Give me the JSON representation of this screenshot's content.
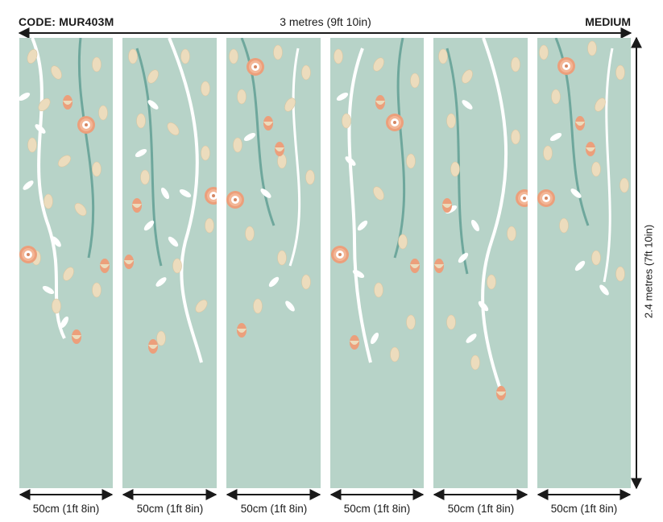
{
  "product": {
    "code_label": "CODE: MUR403M",
    "size_label": "MEDIUM"
  },
  "dimensions": {
    "total_width": "3 metres (9ft 10in)",
    "total_height": "2.4 metres (7ft 10in)"
  },
  "panels": [
    {
      "label": "50cm (1ft 8in)"
    },
    {
      "label": "50cm (1ft 8in)"
    },
    {
      "label": "50cm (1ft 8in)"
    },
    {
      "label": "50cm (1ft 8in)"
    },
    {
      "label": "50cm (1ft 8in)"
    },
    {
      "label": "50cm (1ft 8in)"
    }
  ],
  "colors": {
    "panel_background": "#b7d3c8",
    "leaf_cream": "#ecdcbd",
    "leaf_white": "#ffffff",
    "vine_teal": "#6ea79c",
    "flower_coral": "#ec9f7b",
    "arrow": "#1a1a1a"
  }
}
